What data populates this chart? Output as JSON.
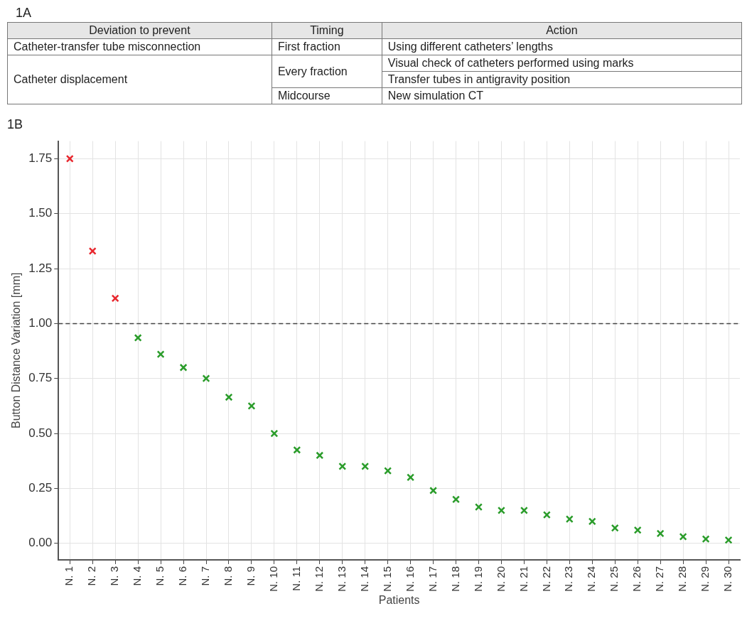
{
  "chart_data": [
    {
      "type": "other",
      "title": "1A",
      "categories": [
        "Deviation to prevent",
        "Timing",
        "Action"
      ],
      "cell_labels": [
        [
          "Catheter-transfer tube misconnection",
          "First fraction",
          "Using different catheters’ lengths"
        ],
        [
          "Catheter displacement",
          "Every fraction",
          "Visual check of catheters performed using marks"
        ],
        [
          null,
          null,
          "Transfer tubes in antigravity position"
        ],
        [
          null,
          "Midcourse",
          "New simulation CT"
        ]
      ]
    },
    {
      "type": "scatter",
      "title": "1B",
      "xlabel": "Patients",
      "ylabel": "Button Distance Variation [mm]",
      "categories": [
        "N. 1",
        "N. 2",
        "N. 3",
        "N. 4",
        "N. 5",
        "N. 6",
        "N. 7",
        "N. 8",
        "N. 9",
        "N. 10",
        "N. 11",
        "N. 12",
        "N. 13",
        "N. 14",
        "N. 15",
        "N. 16",
        "N. 17",
        "N. 18",
        "N. 19",
        "N. 20",
        "N. 21",
        "N. 22",
        "N. 23",
        "N. 24",
        "N. 25",
        "N. 26",
        "N. 27",
        "N. 28",
        "N. 29",
        "N. 30"
      ],
      "values": [
        1.75,
        1.33,
        1.115,
        0.935,
        0.86,
        0.8,
        0.75,
        0.665,
        0.625,
        0.5,
        0.425,
        0.4,
        0.35,
        0.35,
        0.33,
        0.3,
        0.24,
        0.2,
        0.165,
        0.15,
        0.15,
        0.13,
        0.11,
        0.1,
        0.07,
        0.06,
        0.045,
        0.03,
        0.02,
        0.015
      ],
      "colors": [
        "#e8262d",
        "#e8262d",
        "#e8262d",
        "#2a9c2a",
        "#2a9c2a",
        "#2a9c2a",
        "#2a9c2a",
        "#2a9c2a",
        "#2a9c2a",
        "#2a9c2a",
        "#2a9c2a",
        "#2a9c2a",
        "#2a9c2a",
        "#2a9c2a",
        "#2a9c2a",
        "#2a9c2a",
        "#2a9c2a",
        "#2a9c2a",
        "#2a9c2a",
        "#2a9c2a",
        "#2a9c2a",
        "#2a9c2a",
        "#2a9c2a",
        "#2a9c2a",
        "#2a9c2a",
        "#2a9c2a",
        "#2a9c2a",
        "#2a9c2a",
        "#2a9c2a",
        "#2a9c2a"
      ],
      "marker": "cross",
      "grid": true,
      "ylim": [
        -0.075,
        1.83
      ],
      "yticks": [
        {
          "value": 0,
          "label": "0.00"
        },
        {
          "value": 0.25,
          "label": "0.25"
        },
        {
          "value": 0.5,
          "label": "0.50"
        },
        {
          "value": 0.75,
          "label": "0.75"
        },
        {
          "value": 1,
          "label": "1.00"
        },
        {
          "value": 1.25,
          "label": "1.25"
        },
        {
          "value": 1.5,
          "label": "1.50"
        },
        {
          "value": 1.75,
          "label": "1.75"
        }
      ],
      "ref_lines": [
        {
          "axis": "y",
          "value": 1,
          "line_style": "dashed",
          "color": "#444444"
        }
      ]
    }
  ]
}
